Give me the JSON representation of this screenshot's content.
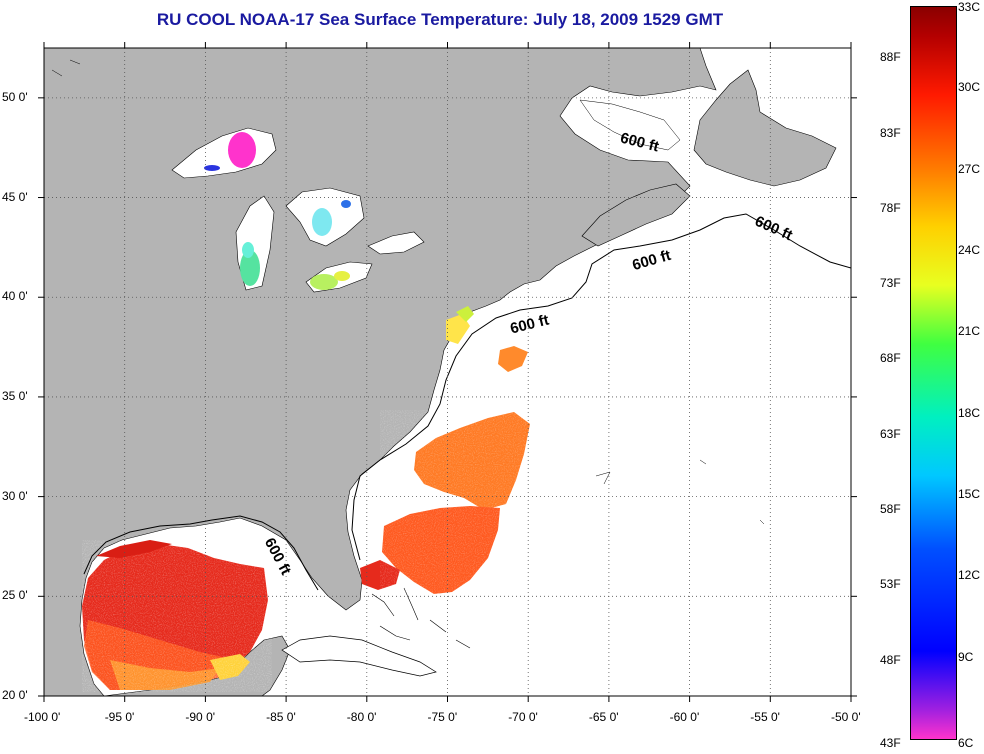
{
  "title": "RU COOL  NOAA-17  Sea Surface Temperature:  July 18, 2009 1529 GMT",
  "map": {
    "lon_ticks": [
      "-100 0'",
      "-95 0'",
      "-90 0'",
      "-85 0'",
      "-80 0'",
      "-75 0'",
      "-70 0'",
      "-65 0'",
      "-60 0'",
      "-55 0'",
      "-50 0'"
    ],
    "lat_ticks": [
      "20 0'",
      "25 0'",
      "30 0'",
      "35 0'",
      "40 0'",
      "45 0'",
      "50 0'"
    ],
    "lon_range": [
      -100,
      -50
    ],
    "lat_range": [
      20,
      52.5
    ],
    "contour_label": "600 ft",
    "colors": {
      "land": "#b4b4b4",
      "ocean": "#ffffff",
      "grid": "#555555"
    }
  },
  "colorbar": {
    "fahrenheit_labels": [
      "88F",
      "83F",
      "78F",
      "73F",
      "68F",
      "63F",
      "58F",
      "53F",
      "48F",
      "43F"
    ],
    "celsius_labels": [
      "33C",
      "30C",
      "27C",
      "24C",
      "21C",
      "18C",
      "15C",
      "12C",
      "9C",
      "6C"
    ],
    "range_celsius": [
      6,
      33
    ]
  }
}
